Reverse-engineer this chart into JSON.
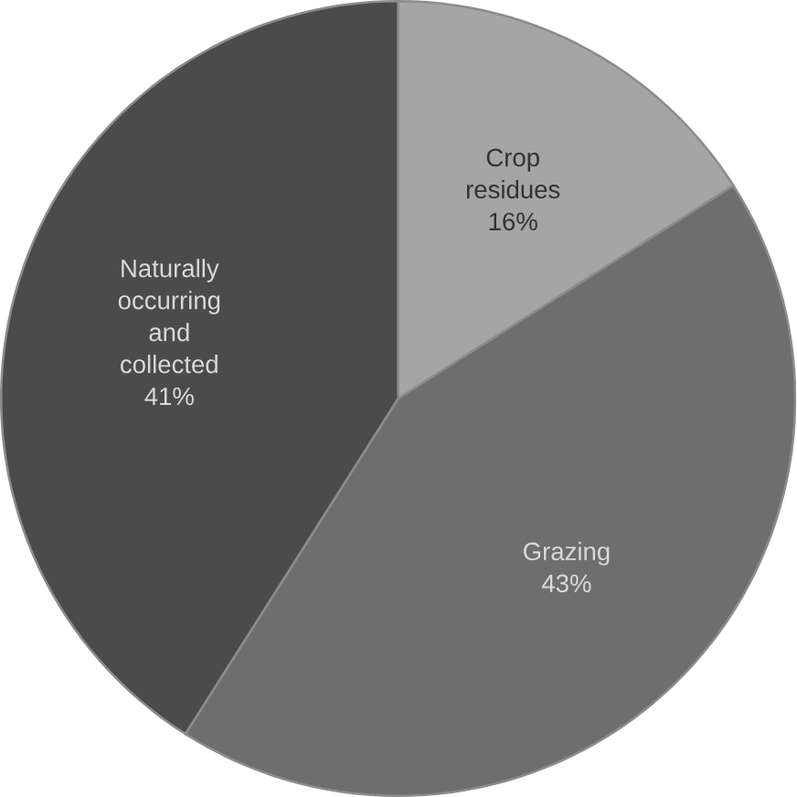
{
  "chart_data": {
    "type": "pie",
    "categories": [
      "Crop residues",
      "Grazing",
      "Naturally occurring and collected"
    ],
    "values": [
      16,
      43,
      41
    ],
    "value_labels": [
      "16%",
      "43%",
      "41%"
    ],
    "colors": [
      "#a5a5a5",
      "#6e6e6e",
      "#4b4b4b"
    ]
  }
}
